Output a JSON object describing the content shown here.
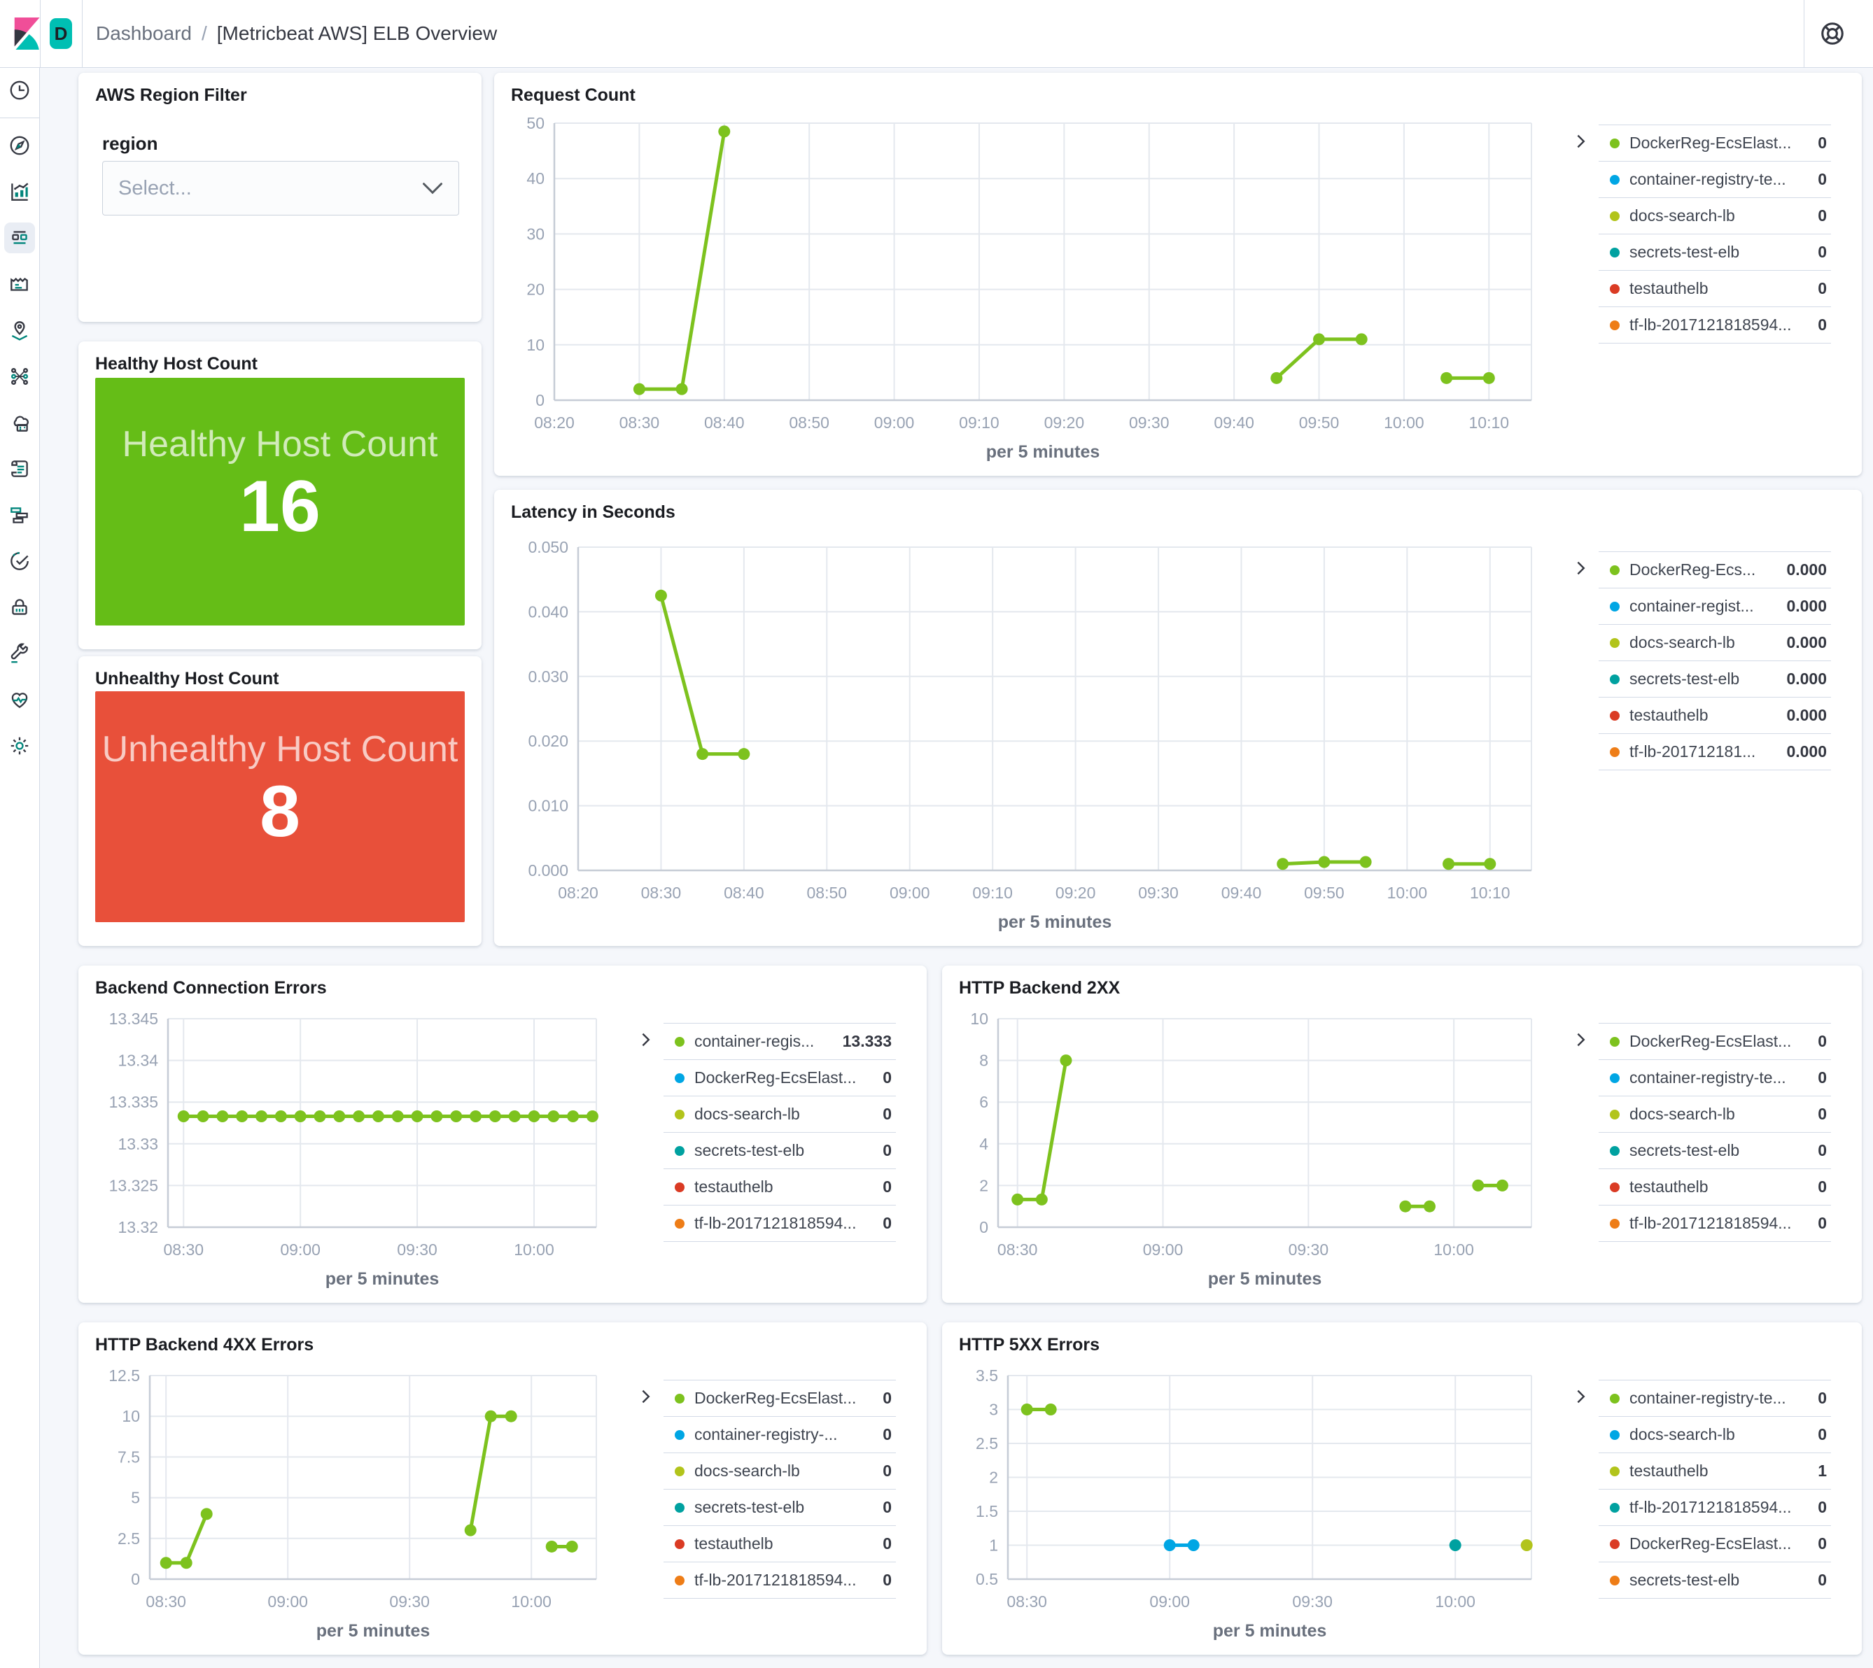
{
  "header": {
    "space_badge": "D",
    "breadcrumbs": [
      "Dashboard",
      "[Metricbeat AWS] ELB Overview"
    ],
    "separator": "/"
  },
  "sidebar": {
    "icons": [
      "recently-viewed",
      "discover",
      "visualize",
      "dashboard",
      "canvas",
      "maps",
      "machine-learning",
      "infrastructure",
      "logs",
      "apm",
      "uptime",
      "siem",
      "dev-tools",
      "stack-monitoring",
      "management"
    ],
    "selected": "dashboard",
    "bottom_icon": "dock-navigation"
  },
  "filter_panel": {
    "title": "AWS Region Filter",
    "field_label": "region",
    "select_placeholder": "Select..."
  },
  "metric_panels": [
    {
      "title": "Healthy Host Count",
      "label": "Healthy Host Count",
      "value": "16",
      "color": "#65BD17"
    },
    {
      "title": "Unhealthy Host Count",
      "label": "Unhealthy Host Count",
      "value": "8",
      "color": "#E8503A"
    }
  ],
  "palette": {
    "green": "#7DC21E",
    "blue": "#00A6E4",
    "yellow": "#B2C41B",
    "teal": "#00A1A0",
    "red": "#DA3B24",
    "orange": "#EE7D17"
  },
  "chart_data": [
    {
      "type": "line",
      "title": "Request Count",
      "xlabel": "per 5 minutes",
      "x_domain": [
        20,
        135
      ],
      "x_ticks": [
        [
          20,
          "08:20"
        ],
        [
          30,
          "08:30"
        ],
        [
          40,
          "08:40"
        ],
        [
          50,
          "08:50"
        ],
        [
          60,
          "09:00"
        ],
        [
          70,
          "09:10"
        ],
        [
          80,
          "09:20"
        ],
        [
          90,
          "09:30"
        ],
        [
          100,
          "09:40"
        ],
        [
          110,
          "09:50"
        ],
        [
          120,
          "10:00"
        ],
        [
          130,
          "10:10"
        ]
      ],
      "ylim": [
        0,
        50
      ],
      "y_ticks": [
        [
          0,
          "0"
        ],
        [
          10,
          "10"
        ],
        [
          20,
          "20"
        ],
        [
          30,
          "30"
        ],
        [
          40,
          "40"
        ],
        [
          50,
          "50"
        ]
      ],
      "series": [
        {
          "name": "DockerReg-EcsElast...",
          "color": "green",
          "segments": [
            [
              [
                30,
                2
              ],
              [
                35,
                2
              ],
              [
                40,
                48.5
              ]
            ],
            [
              [
                105,
                4
              ],
              [
                110,
                11
              ],
              [
                115,
                11
              ]
            ],
            [
              [
                125,
                4
              ],
              [
                130,
                4
              ]
            ]
          ]
        }
      ],
      "legend": [
        {
          "label": "DockerReg-EcsElast...",
          "value": "0",
          "color": "green"
        },
        {
          "label": "container-registry-te...",
          "value": "0",
          "color": "blue"
        },
        {
          "label": "docs-search-lb",
          "value": "0",
          "color": "yellow"
        },
        {
          "label": "secrets-test-elb",
          "value": "0",
          "color": "teal"
        },
        {
          "label": "testauthelb",
          "value": "0",
          "color": "red"
        },
        {
          "label": "tf-lb-2017121818594...",
          "value": "0",
          "color": "orange"
        }
      ]
    },
    {
      "type": "line",
      "title": "Latency in Seconds",
      "xlabel": "per 5 minutes",
      "x_domain": [
        20,
        135
      ],
      "x_ticks": [
        [
          20,
          "08:20"
        ],
        [
          30,
          "08:30"
        ],
        [
          40,
          "08:40"
        ],
        [
          50,
          "08:50"
        ],
        [
          60,
          "09:00"
        ],
        [
          70,
          "09:10"
        ],
        [
          80,
          "09:20"
        ],
        [
          90,
          "09:30"
        ],
        [
          100,
          "09:40"
        ],
        [
          110,
          "09:50"
        ],
        [
          120,
          "10:00"
        ],
        [
          130,
          "10:10"
        ]
      ],
      "ylim": [
        0,
        0.05
      ],
      "y_ticks": [
        [
          0,
          "0.000"
        ],
        [
          0.01,
          "0.010"
        ],
        [
          0.02,
          "0.020"
        ],
        [
          0.03,
          "0.030"
        ],
        [
          0.04,
          "0.040"
        ],
        [
          0.05,
          "0.050"
        ]
      ],
      "series": [
        {
          "name": "DockerReg-Ecs...",
          "color": "green",
          "segments": [
            [
              [
                30,
                0.0425
              ],
              [
                35,
                0.018
              ],
              [
                40,
                0.018
              ]
            ],
            [
              [
                105,
                0.001
              ],
              [
                110,
                0.0013
              ],
              [
                115,
                0.0013
              ]
            ],
            [
              [
                125,
                0.001
              ],
              [
                130,
                0.001
              ]
            ]
          ]
        }
      ],
      "legend": [
        {
          "label": "DockerReg-Ecs...",
          "value": "0.000",
          "color": "green"
        },
        {
          "label": "container-regist...",
          "value": "0.000",
          "color": "blue"
        },
        {
          "label": "docs-search-lb",
          "value": "0.000",
          "color": "yellow"
        },
        {
          "label": "secrets-test-elb",
          "value": "0.000",
          "color": "teal"
        },
        {
          "label": "testauthelb",
          "value": "0.000",
          "color": "red"
        },
        {
          "label": "tf-lb-201712181...",
          "value": "0.000",
          "color": "orange"
        }
      ]
    },
    {
      "type": "line",
      "title": "Backend Connection Errors",
      "xlabel": "per 5 minutes",
      "x_domain": [
        26,
        136
      ],
      "x_ticks": [
        [
          30,
          "08:30"
        ],
        [
          60,
          "09:00"
        ],
        [
          90,
          "09:30"
        ],
        [
          120,
          "10:00"
        ]
      ],
      "ylim": [
        13.32,
        13.345
      ],
      "y_ticks": [
        [
          13.32,
          "13.32"
        ],
        [
          13.325,
          "13.325"
        ],
        [
          13.33,
          "13.33"
        ],
        [
          13.335,
          "13.335"
        ],
        [
          13.34,
          "13.34"
        ],
        [
          13.345,
          "13.345"
        ]
      ],
      "series": [
        {
          "name": "container-regis...",
          "color": "green",
          "segments": [
            [
              [
                30,
                13.3333
              ],
              [
                35,
                13.3333
              ],
              [
                40,
                13.3333
              ],
              [
                45,
                13.3333
              ],
              [
                50,
                13.3333
              ],
              [
                55,
                13.3333
              ],
              [
                60,
                13.3333
              ],
              [
                65,
                13.3333
              ],
              [
                70,
                13.3333
              ],
              [
                75,
                13.3333
              ],
              [
                80,
                13.3333
              ],
              [
                85,
                13.3333
              ],
              [
                90,
                13.3333
              ],
              [
                95,
                13.3333
              ],
              [
                100,
                13.3333
              ],
              [
                105,
                13.3333
              ],
              [
                110,
                13.3333
              ],
              [
                115,
                13.3333
              ],
              [
                120,
                13.3333
              ],
              [
                125,
                13.3333
              ],
              [
                130,
                13.3333
              ],
              [
                135,
                13.3333
              ]
            ]
          ]
        }
      ],
      "legend": [
        {
          "label": "container-regis...",
          "value": "13.333",
          "color": "green"
        },
        {
          "label": "DockerReg-EcsElast...",
          "value": "0",
          "color": "blue"
        },
        {
          "label": "docs-search-lb",
          "value": "0",
          "color": "yellow"
        },
        {
          "label": "secrets-test-elb",
          "value": "0",
          "color": "teal"
        },
        {
          "label": "testauthelb",
          "value": "0",
          "color": "red"
        },
        {
          "label": "tf-lb-2017121818594...",
          "value": "0",
          "color": "orange"
        }
      ]
    },
    {
      "type": "line",
      "title": "HTTP Backend 2XX",
      "xlabel": "per 5 minutes",
      "x_domain": [
        26,
        136
      ],
      "x_ticks": [
        [
          30,
          "08:30"
        ],
        [
          60,
          "09:00"
        ],
        [
          90,
          "09:30"
        ],
        [
          120,
          "10:00"
        ]
      ],
      "ylim": [
        0,
        10
      ],
      "y_ticks": [
        [
          0,
          "0"
        ],
        [
          2,
          "2"
        ],
        [
          4,
          "4"
        ],
        [
          6,
          "6"
        ],
        [
          8,
          "8"
        ],
        [
          10,
          "10"
        ]
      ],
      "series": [
        {
          "name": "DockerReg-EcsElast...",
          "color": "green",
          "segments": [
            [
              [
                30,
                1.33
              ],
              [
                35,
                1.33
              ],
              [
                40,
                8
              ]
            ],
            [
              [
                110,
                1
              ],
              [
                115,
                1
              ]
            ],
            [
              [
                125,
                2
              ],
              [
                130,
                2
              ]
            ]
          ]
        }
      ],
      "legend": [
        {
          "label": "DockerReg-EcsElast...",
          "value": "0",
          "color": "green"
        },
        {
          "label": "container-registry-te...",
          "value": "0",
          "color": "blue"
        },
        {
          "label": "docs-search-lb",
          "value": "0",
          "color": "yellow"
        },
        {
          "label": "secrets-test-elb",
          "value": "0",
          "color": "teal"
        },
        {
          "label": "testauthelb",
          "value": "0",
          "color": "red"
        },
        {
          "label": "tf-lb-2017121818594...",
          "value": "0",
          "color": "orange"
        }
      ]
    },
    {
      "type": "line",
      "title": "HTTP Backend 4XX Errors",
      "xlabel": "per 5 minutes",
      "x_domain": [
        26,
        136
      ],
      "x_ticks": [
        [
          30,
          "08:30"
        ],
        [
          60,
          "09:00"
        ],
        [
          90,
          "09:30"
        ],
        [
          120,
          "10:00"
        ]
      ],
      "ylim": [
        0,
        12.5
      ],
      "y_ticks": [
        [
          0,
          "0"
        ],
        [
          2.5,
          "2.5"
        ],
        [
          5,
          "5"
        ],
        [
          7.5,
          "7.5"
        ],
        [
          10,
          "10"
        ],
        [
          12.5,
          "12.5"
        ]
      ],
      "series": [
        {
          "name": "DockerReg-EcsElast...",
          "color": "green",
          "segments": [
            [
              [
                30,
                1
              ],
              [
                35,
                1
              ],
              [
                40,
                4
              ]
            ],
            [
              [
                105,
                3
              ],
              [
                110,
                10
              ],
              [
                115,
                10
              ]
            ],
            [
              [
                125,
                2
              ],
              [
                130,
                2
              ]
            ]
          ]
        }
      ],
      "legend": [
        {
          "label": "DockerReg-EcsElast...",
          "value": "0",
          "color": "green"
        },
        {
          "label": "container-registry-...",
          "value": "0",
          "color": "blue"
        },
        {
          "label": "docs-search-lb",
          "value": "0",
          "color": "yellow"
        },
        {
          "label": "secrets-test-elb",
          "value": "0",
          "color": "teal"
        },
        {
          "label": "testauthelb",
          "value": "0",
          "color": "red"
        },
        {
          "label": "tf-lb-2017121818594...",
          "value": "0",
          "color": "orange"
        }
      ]
    },
    {
      "type": "line",
      "title": "HTTP 5XX Errors",
      "xlabel": "per 5 minutes",
      "x_domain": [
        26,
        136
      ],
      "x_ticks": [
        [
          30,
          "08:30"
        ],
        [
          60,
          "09:00"
        ],
        [
          90,
          "09:30"
        ],
        [
          120,
          "10:00"
        ]
      ],
      "ylim": [
        0.5,
        3.5
      ],
      "y_ticks": [
        [
          0.5,
          "0.5"
        ],
        [
          1,
          "1"
        ],
        [
          1.5,
          "1.5"
        ],
        [
          2,
          "2"
        ],
        [
          2.5,
          "2.5"
        ],
        [
          3,
          "3"
        ],
        [
          3.5,
          "3.5"
        ]
      ],
      "series": [
        {
          "name": "container-registry-te...",
          "color": "green",
          "segments": [
            [
              [
                30,
                3
              ],
              [
                35,
                3
              ]
            ]
          ]
        },
        {
          "name": "docs-search-lb",
          "color": "blue",
          "segments": [
            [
              [
                60,
                1
              ],
              [
                65,
                1
              ]
            ]
          ]
        },
        {
          "name": "tf-lb-2017121818594...",
          "color": "teal",
          "segments": [
            [
              [
                120,
                1
              ]
            ]
          ]
        },
        {
          "name": "testauthelb",
          "color": "yellow",
          "segments": [
            [
              [
                135,
                1
              ]
            ]
          ]
        }
      ],
      "legend": [
        {
          "label": "container-registry-te...",
          "value": "0",
          "color": "green"
        },
        {
          "label": "docs-search-lb",
          "value": "0",
          "color": "blue"
        },
        {
          "label": "testauthelb",
          "value": "1",
          "color": "yellow"
        },
        {
          "label": "tf-lb-2017121818594...",
          "value": "0",
          "color": "teal"
        },
        {
          "label": "DockerReg-EcsElast...",
          "value": "0",
          "color": "red"
        },
        {
          "label": "secrets-test-elb",
          "value": "0",
          "color": "orange"
        }
      ]
    }
  ]
}
